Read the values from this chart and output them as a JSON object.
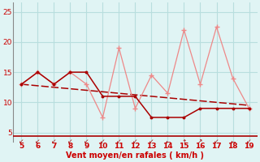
{
  "xlabel": "Vent moyen/en rafales ( km/h )",
  "bg_color": "#e0f4f4",
  "grid_color": "#b8dede",
  "x_ticks": [
    5,
    6,
    7,
    8,
    9,
    10,
    11,
    12,
    13,
    14,
    15,
    16,
    17,
    18,
    19
  ],
  "y_ticks": [
    5,
    10,
    15,
    20,
    25
  ],
  "ylim": [
    3.5,
    26.5
  ],
  "xlim": [
    4.5,
    19.5
  ],
  "dark_red_x": [
    5,
    6,
    7,
    8,
    9,
    10,
    11,
    12,
    13,
    14,
    15,
    16,
    17,
    18,
    19
  ],
  "dark_red_y": [
    13,
    15,
    13,
    15,
    15,
    11,
    11,
    11,
    7.5,
    7.5,
    7.5,
    9,
    9,
    9,
    9
  ],
  "light_red_x": [
    5,
    6,
    7,
    8,
    9,
    10,
    11,
    12,
    13,
    14,
    15,
    16,
    17,
    18,
    19
  ],
  "light_red_y": [
    13,
    15,
    13,
    15,
    13,
    7.5,
    19,
    9,
    14.5,
    11.5,
    22,
    13,
    22.5,
    14,
    9
  ],
  "trend_x": [
    5,
    19
  ],
  "trend_y": [
    13.0,
    9.5
  ],
  "dark_red_color": "#aa0000",
  "light_red_color": "#ee8888",
  "trend_color": "#aa0000",
  "xlabel_color": "#cc0000",
  "tick_color": "#cc0000",
  "arrow_symbols": [
    "↙",
    "↙",
    "↙",
    "↙",
    "↙",
    "↙",
    "↙",
    "↙",
    "↙",
    "↓",
    "↑",
    "↗",
    "↖",
    "↖",
    "↖",
    "↙",
    "←",
    "↙",
    "↙",
    "↙",
    "↙",
    "↙",
    "↙",
    "↙",
    "↙",
    "↙",
    "↙",
    "↙",
    "↙",
    "↙"
  ]
}
